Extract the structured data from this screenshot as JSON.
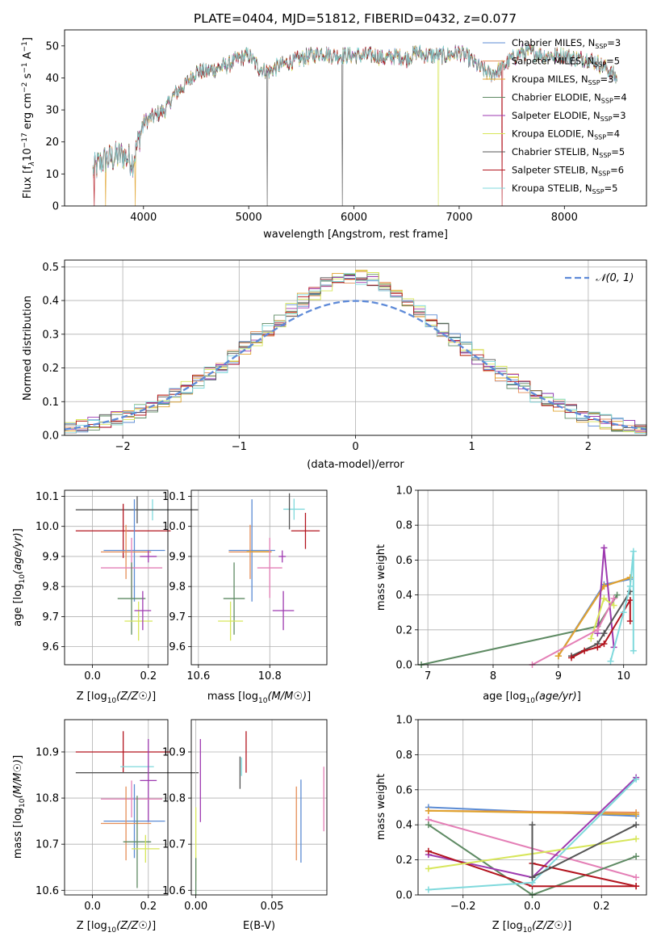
{
  "title": "PLATE=0404, MJD=51812, FIBERID=0432, z=0.077",
  "colors": {
    "Chabrier MILES": "#5b8bd3",
    "Salpeter MILES": "#e58e58",
    "Kroupa MILES": "#e0a32e",
    "Chabrier ELODIE": "#5e8a63",
    "Salpeter ELODIE": "#9e3ab0",
    "Kroupa ELODIE": "#d7e65a",
    "Chabrier STELIB": "#555555",
    "Salpeter STELIB": "#b3151f",
    "Kroupa STELIB": "#7fd9dc",
    "pink": "#e47fb6",
    "gauss": "#5e8ad8"
  },
  "legend_top": [
    {
      "name": "Chabrier MILES",
      "nssp": "3"
    },
    {
      "name": "Salpeter MILES",
      "nssp": "5"
    },
    {
      "name": "Kroupa MILES",
      "nssp": "3"
    },
    {
      "name": "Chabrier ELODIE",
      "nssp": "4"
    },
    {
      "name": "Salpeter ELODIE",
      "nssp": "3"
    },
    {
      "name": "Kroupa ELODIE",
      "nssp": "4"
    },
    {
      "name": "Chabrier STELIB",
      "nssp": "5"
    },
    {
      "name": "Salpeter STELIB",
      "nssp": "6"
    },
    {
      "name": "Kroupa STELIB",
      "nssp": "5"
    }
  ],
  "chart_data": [
    {
      "type": "line",
      "panel": "spectrum",
      "xlabel": "wavelength [Angstrom, rest frame]",
      "ylabel_parts": [
        "Flux [f",
        "λ",
        "10",
        "−17",
        " erg cm",
        "−2",
        " s",
        "−1",
        " A",
        "−1",
        "]"
      ],
      "xlim": [
        3250,
        8780
      ],
      "ylim": [
        0,
        55
      ],
      "xticks": [
        4000,
        5000,
        6000,
        7000,
        8000
      ],
      "yticks": [
        0,
        10,
        20,
        30,
        40,
        50
      ],
      "series_nodes": {
        "x": [
          3520,
          3600,
          3700,
          3800,
          3900,
          3950,
          4000,
          4100,
          4200,
          4300,
          4400,
          4500,
          4600,
          4800,
          4900,
          5000,
          5100,
          5200,
          5300,
          5400,
          5500,
          5600,
          5700,
          5800,
          5900,
          6000,
          6100,
          6200,
          6300,
          6400,
          6500,
          6600,
          6700,
          6800,
          6900,
          7000,
          7100,
          7200,
          7300,
          7400,
          7500,
          7600,
          7700,
          7800,
          7900,
          8000,
          8100,
          8200,
          8300,
          8400,
          8500
        ],
        "y": [
          11,
          14,
          15,
          16,
          14,
          20,
          26,
          28,
          30,
          35,
          38,
          42,
          42,
          44,
          46,
          47,
          43,
          42,
          44,
          45,
          46,
          47,
          48,
          47,
          47,
          47,
          47,
          47,
          46,
          47,
          46,
          48,
          47,
          47,
          47,
          48,
          46,
          43,
          41,
          43,
          46,
          48,
          48,
          47,
          47,
          47,
          46,
          46,
          45,
          43,
          40
        ]
      },
      "dropouts": [
        {
          "x": 3530,
          "series": "Salpeter STELIB"
        },
        {
          "x": 3640,
          "series": "Kroupa MILES"
        },
        {
          "x": 3920,
          "series": "Kroupa MILES"
        },
        {
          "x": 5175,
          "series": "Chabrier STELIB"
        },
        {
          "x": 5890,
          "series": "Chabrier STELIB"
        },
        {
          "x": 6800,
          "series": "Kroupa ELODIE"
        },
        {
          "x": 7410,
          "series": "Salpeter STELIB"
        }
      ]
    },
    {
      "type": "histogram",
      "panel": "residuals",
      "xlabel": "(data-model)/error",
      "ylabel": "Normed distribution",
      "xlim": [
        -2.5,
        2.5
      ],
      "ylim": [
        0,
        0.52
      ],
      "xticks": [
        -2,
        -1,
        0,
        1,
        2
      ],
      "xtick_labels": [
        "−2",
        "−1",
        "0",
        "1",
        "2"
      ],
      "yticks": [
        0.0,
        0.1,
        0.2,
        0.3,
        0.4,
        0.5
      ],
      "ytick_labels": [
        "0.0",
        "0.1",
        "0.2",
        "0.3",
        "0.4",
        "0.5"
      ],
      "gauss_label": "𝒩(0, 1)",
      "bin_width": 0.1,
      "bin_start": -2.5
    },
    {
      "type": "errorbar",
      "panel": "Z-age",
      "xlabel": "Z [log10(Z/Z☉)]",
      "ylabel": "age [log10(age/yr)]",
      "xlim": [
        -0.1,
        0.27
      ],
      "ylim": [
        9.54,
        10.12
      ],
      "xticks": [
        0.0,
        0.2
      ],
      "xtick_labels": [
        "0.0",
        "0.2"
      ],
      "yticks": [
        9.6,
        9.7,
        9.8,
        9.9,
        10.0,
        10.1
      ],
      "ytick_labels": [
        "9.6",
        "9.7",
        "9.8",
        "9.9",
        "10.0",
        "10.1"
      ],
      "points": [
        {
          "c": "Kroupa STELIB",
          "x": 0.215,
          "xe": 0.06,
          "y": 10.055,
          "ye": 0.035
        },
        {
          "c": "Chabrier STELIB",
          "x": 0.16,
          "xe": 0.22,
          "y": 10.055,
          "ye": 0.045
        },
        {
          "c": "Salpeter STELIB",
          "x": 0.11,
          "xe": 0.17,
          "y": 9.985,
          "ye": 0.09
        },
        {
          "c": "Chabrier MILES",
          "x": 0.15,
          "xe": 0.11,
          "y": 9.92,
          "ye": 0.17
        },
        {
          "c": "Salpeter MILES",
          "x": 0.12,
          "xe": 0.09,
          "y": 9.915,
          "ye": 0.09
        },
        {
          "c": "Salpeter ELODIE",
          "x": 0.2,
          "xe": 0.03,
          "y": 9.9,
          "ye": 0.02
        },
        {
          "c": "pink",
          "x": 0.14,
          "xe": 0.11,
          "y": 9.862,
          "ye": 0.1
        },
        {
          "c": "Chabrier ELODIE",
          "x": 0.14,
          "xe": 0.05,
          "y": 9.76,
          "ye": 0.12
        },
        {
          "c": "Kroupa ELODIE",
          "x": 0.165,
          "xe": 0.05,
          "y": 9.685,
          "ye": 0.065
        },
        {
          "c": "Salpeter ELODIE",
          "x": 0.18,
          "xe": 0.03,
          "y": 9.72,
          "ye": 0.065
        }
      ]
    },
    {
      "type": "errorbar",
      "panel": "mass-age",
      "xlabel": "mass [log10(M/M☉)]",
      "xlim": [
        10.58,
        10.96
      ],
      "ylim": [
        9.54,
        10.12
      ],
      "xticks": [
        10.6,
        10.8
      ],
      "xtick_labels": [
        "10.6",
        "10.8"
      ],
      "yticks": [
        9.6,
        9.7,
        9.8,
        9.9,
        10.0,
        10.1
      ],
      "ytick_labels": [
        "9.6",
        "9.7",
        "9.8",
        "9.9",
        "10.0",
        "10.1"
      ],
      "points": [
        {
          "c": "Kroupa STELIB",
          "x": 10.868,
          "xe": 0.03,
          "y": 10.057,
          "ye": 0.035
        },
        {
          "c": "Chabrier STELIB",
          "x": 10.855,
          "xe": 0.0,
          "y": 10.05,
          "ye": 0.06
        },
        {
          "c": "Salpeter STELIB",
          "x": 10.9,
          "xe": 0.04,
          "y": 9.985,
          "ye": 0.06
        },
        {
          "c": "Chabrier MILES",
          "x": 10.75,
          "xe": 0.065,
          "y": 9.92,
          "ye": 0.17
        },
        {
          "c": "Salpeter MILES",
          "x": 10.745,
          "xe": 0.06,
          "y": 9.915,
          "ye": 0.09
        },
        {
          "c": "Kroupa MILES",
          "x": 10.77,
          "xe": 0.035,
          "y": 9.916,
          "ye": 0.0
        },
        {
          "c": "Salpeter ELODIE",
          "x": 10.835,
          "xe": 0.01,
          "y": 9.9,
          "ye": 0.02
        },
        {
          "c": "pink",
          "x": 10.8,
          "xe": 0.035,
          "y": 9.862,
          "ye": 0.1
        },
        {
          "c": "Chabrier ELODIE",
          "x": 10.7,
          "xe": 0.03,
          "y": 9.76,
          "ye": 0.12
        },
        {
          "c": "Kroupa ELODIE",
          "x": 10.69,
          "xe": 0.035,
          "y": 9.685,
          "ye": 0.065
        },
        {
          "c": "Salpeter ELODIE",
          "x": 10.838,
          "xe": 0.03,
          "y": 9.72,
          "ye": 0.065
        }
      ]
    },
    {
      "type": "line",
      "panel": "age-massweight",
      "xlabel": "age [log10(age/yr)]",
      "ylabel": "mass weight",
      "xlim": [
        6.85,
        10.35
      ],
      "ylim": [
        0,
        1.0
      ],
      "xticks": [
        7,
        8,
        9,
        10
      ],
      "yticks": [
        0.0,
        0.2,
        0.4,
        0.6,
        0.8,
        1.0
      ],
      "ytick_labels": [
        "0.0",
        "0.2",
        "0.4",
        "0.6",
        "0.8",
        "1.0"
      ],
      "series": [
        {
          "c": "Chabrier ELODIE",
          "x": [
            6.9,
            9.6,
            9.9
          ],
          "y": [
            0.0,
            0.22,
            0.4
          ]
        },
        {
          "c": "Chabrier MILES",
          "x": [
            9.0,
            9.7,
            10.1
          ],
          "y": [
            0.05,
            0.46,
            0.49
          ]
        },
        {
          "c": "Salpeter MILES",
          "x": [
            9.0,
            9.7,
            10.1
          ],
          "y": [
            0.05,
            0.45,
            0.5
          ]
        },
        {
          "c": "Kroupa MILES",
          "x": [
            9.0,
            9.7,
            10.1
          ],
          "y": [
            0.05,
            0.45,
            0.5
          ]
        },
        {
          "c": "Salpeter ELODIE",
          "x": [
            9.6,
            9.7,
            9.85
          ],
          "y": [
            0.18,
            0.67,
            0.1
          ]
        },
        {
          "c": "Kroupa ELODIE",
          "x": [
            9.5,
            9.7,
            9.85
          ],
          "y": [
            0.15,
            0.38,
            0.34
          ]
        },
        {
          "c": "pink",
          "x": [
            8.6,
            9.6,
            9.85
          ],
          "y": [
            0.0,
            0.2,
            0.38
          ]
        },
        {
          "c": "Chabrier STELIB",
          "x": [
            9.2,
            9.6,
            9.7,
            10.1
          ],
          "y": [
            0.05,
            0.12,
            0.18,
            0.42
          ]
        },
        {
          "c": "Salpeter STELIB",
          "x": [
            9.2,
            9.4,
            9.6,
            9.7,
            10.1,
            10.1
          ],
          "y": [
            0.04,
            0.08,
            0.1,
            0.12,
            0.37,
            0.25
          ]
        },
        {
          "c": "Kroupa STELIB",
          "x": [
            9.8,
            10.0,
            10.1,
            10.15,
            10.15
          ],
          "y": [
            0.02,
            0.3,
            0.45,
            0.65,
            0.08
          ]
        }
      ]
    },
    {
      "type": "errorbar",
      "panel": "Z-mass",
      "xlabel": "Z [log10(Z/Z☉)]",
      "ylabel": "mass [log10(M/M☉)]",
      "xlim": [
        -0.1,
        0.27
      ],
      "ylim": [
        10.59,
        10.97
      ],
      "xticks": [
        0.0,
        0.2
      ],
      "xtick_labels": [
        "0.0",
        "0.2"
      ],
      "yticks": [
        10.6,
        10.7,
        10.8,
        10.9
      ],
      "ytick_labels": [
        "10.6",
        "10.7",
        "10.8",
        "10.9"
      ],
      "points": [
        {
          "c": "Salpeter STELIB",
          "x": 0.11,
          "xe": 0.17,
          "y": 10.9,
          "ye": 0.045
        },
        {
          "c": "Kroupa STELIB",
          "x": 0.16,
          "xe": 0.06,
          "y": 10.868,
          "ye": 0.0
        },
        {
          "c": "Chabrier STELIB",
          "x": 0.16,
          "xe": 0.22,
          "y": 10.855,
          "ye": 0.0
        },
        {
          "c": "Salpeter ELODIE",
          "x": 0.2,
          "xe": 0.03,
          "y": 10.838,
          "ye": 0.09
        },
        {
          "c": "pink",
          "x": 0.14,
          "xe": 0.11,
          "y": 10.798,
          "ye": 0.04
        },
        {
          "c": "Chabrier MILES",
          "x": 0.15,
          "xe": 0.11,
          "y": 10.75,
          "ye": 0.08
        },
        {
          "c": "Salpeter MILES",
          "x": 0.12,
          "xe": 0.09,
          "y": 10.745,
          "ye": 0.08
        },
        {
          "c": "Chabrier ELODIE",
          "x": 0.16,
          "xe": 0.05,
          "y": 10.705,
          "ye": 0.1
        },
        {
          "c": "Kroupa ELODIE",
          "x": 0.19,
          "xe": 0.05,
          "y": 10.69,
          "ye": 0.03
        }
      ]
    },
    {
      "type": "errorbar",
      "panel": "EBV-mass",
      "xlabel": "E(B-V)",
      "xlim": [
        -0.003,
        0.086
      ],
      "ylim": [
        10.59,
        10.97
      ],
      "xticks": [
        0.0,
        0.05
      ],
      "xtick_labels": [
        "0.00",
        "0.05"
      ],
      "yticks": [
        10.6,
        10.7,
        10.8,
        10.9
      ],
      "ytick_labels": [
        "10.6",
        "10.7",
        "10.8",
        "10.9"
      ],
      "points": [
        {
          "c": "Salpeter STELIB",
          "x": 0.033,
          "xe": 0,
          "y": 10.9,
          "ye": 0.045
        },
        {
          "c": "Kroupa STELIB",
          "x": 0.03,
          "xe": 0,
          "y": 10.868,
          "ye": 0.02
        },
        {
          "c": "Chabrier STELIB",
          "x": 0.029,
          "xe": 0,
          "y": 10.855,
          "ye": 0.035
        },
        {
          "c": "Salpeter ELODIE",
          "x": 0.003,
          "xe": 0,
          "y": 10.838,
          "ye": 0.09
        },
        {
          "c": "pink",
          "x": 0.084,
          "xe": 0,
          "y": 10.798,
          "ye": 0.07
        },
        {
          "c": "Chabrier MILES",
          "x": 0.069,
          "xe": 0,
          "y": 10.75,
          "ye": 0.09
        },
        {
          "c": "Salpeter MILES",
          "x": 0.066,
          "xe": 0,
          "y": 10.745,
          "ye": 0.08
        },
        {
          "c": "Kroupa ELODIE",
          "x": 0.0,
          "xe": 0,
          "y": 10.7,
          "ye": 0.08
        },
        {
          "c": "Chabrier ELODIE",
          "x": 0.0,
          "xe": 0,
          "y": 10.63,
          "ye": 0.04
        }
      ]
    },
    {
      "type": "line",
      "panel": "Z-massweight",
      "xlabel": "Z [log10(Z/Z☉)]",
      "ylabel": "mass weight",
      "xlim": [
        -0.33,
        0.33
      ],
      "ylim": [
        0,
        1.0
      ],
      "xticks": [
        -0.2,
        0.0,
        0.2
      ],
      "xtick_labels": [
        "−0.2",
        "0.0",
        "0.2"
      ],
      "yticks": [
        0.0,
        0.2,
        0.4,
        0.6,
        0.8,
        1.0
      ],
      "ytick_labels": [
        "0.0",
        "0.2",
        "0.4",
        "0.6",
        "0.8",
        "1.0"
      ],
      "series": [
        {
          "c": "Chabrier MILES",
          "x": [
            -0.3,
            0.3
          ],
          "y": [
            0.5,
            0.45
          ]
        },
        {
          "c": "Salpeter MILES",
          "x": [
            -0.3,
            0.3
          ],
          "y": [
            0.48,
            0.47
          ]
        },
        {
          "c": "Kroupa MILES",
          "x": [
            -0.3,
            0.3
          ],
          "y": [
            0.48,
            0.46
          ]
        },
        {
          "c": "pink",
          "x": [
            -0.3,
            0.3
          ],
          "y": [
            0.43,
            0.1
          ]
        },
        {
          "c": "Chabrier ELODIE",
          "x": [
            -0.3,
            0.0,
            0.3
          ],
          "y": [
            0.4,
            0.0,
            0.22
          ]
        },
        {
          "c": "Salpeter ELODIE",
          "x": [
            -0.3,
            0.0,
            0.3
          ],
          "y": [
            0.23,
            0.1,
            0.67
          ]
        },
        {
          "c": "Salpeter STELIB",
          "x": [
            -0.3,
            0.0,
            0.3
          ],
          "y": [
            0.25,
            0.05,
            0.05
          ]
        },
        {
          "c": "Salpeter STELIB",
          "x": [
            0.0,
            0.3
          ],
          "y": [
            0.18,
            0.05
          ]
        },
        {
          "c": "Kroupa ELODIE",
          "x": [
            -0.3,
            0.3
          ],
          "y": [
            0.15,
            0.32
          ]
        },
        {
          "c": "Kroupa STELIB",
          "x": [
            -0.3,
            0.0,
            0.3
          ],
          "y": [
            0.03,
            0.07,
            0.66
          ]
        },
        {
          "c": "Chabrier STELIB",
          "x": [
            0.0,
            0.0,
            0.3
          ],
          "y": [
            0.4,
            0.1,
            0.4
          ]
        }
      ]
    }
  ]
}
